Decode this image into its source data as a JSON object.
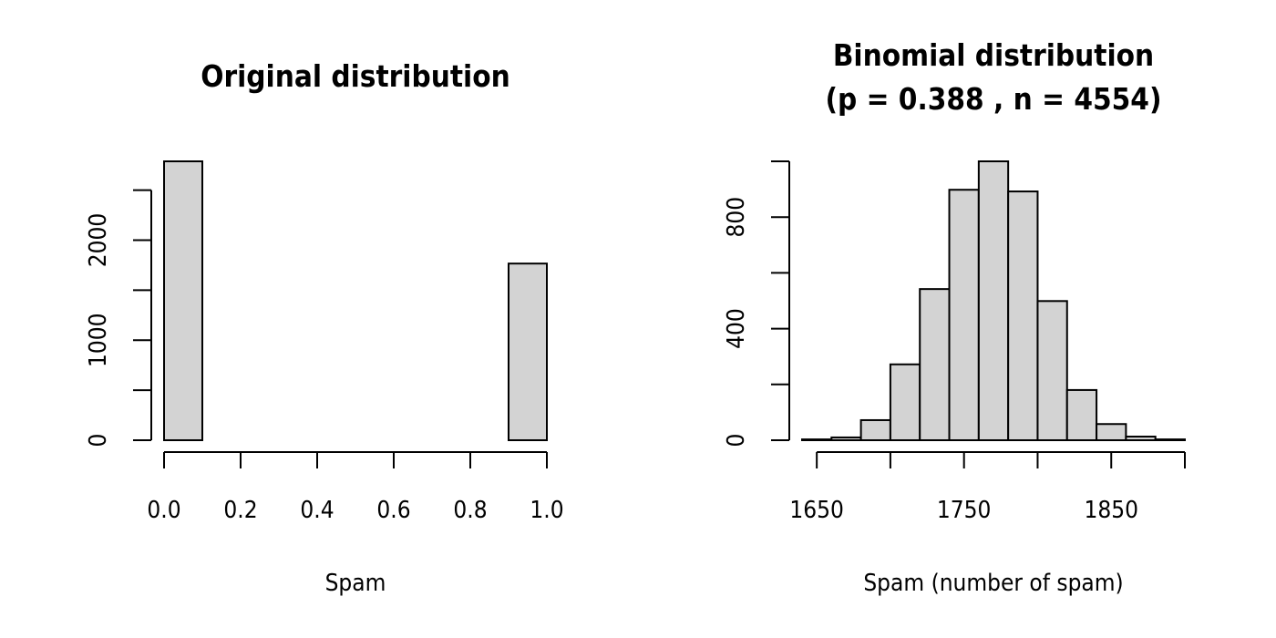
{
  "chart_data": [
    {
      "id": "left",
      "type": "bar",
      "title_lines": [
        "Original distribution"
      ],
      "xlabel": "Spam",
      "ylabel": "",
      "bin_edges": [
        0.0,
        0.1,
        0.2,
        0.3,
        0.4,
        0.5,
        0.6,
        0.7,
        0.8,
        0.9,
        1.0
      ],
      "values": [
        2788,
        0,
        0,
        0,
        0,
        0,
        0,
        0,
        0,
        1766
      ],
      "xlim": [
        0.0,
        1.0
      ],
      "ylim": [
        0,
        2788
      ],
      "x_ticks": [
        0.0,
        0.2,
        0.4,
        0.6,
        0.8,
        1.0
      ],
      "x_tick_labels": [
        "0.0",
        "0.2",
        "0.4",
        "0.6",
        "0.8",
        "1.0"
      ],
      "y_ticks": [
        0,
        500,
        1000,
        1500,
        2000,
        2500
      ],
      "y_tick_labels": [
        "0",
        "",
        "1000",
        "",
        "2000",
        ""
      ],
      "grid": false,
      "legend": "none"
    },
    {
      "id": "right",
      "type": "bar",
      "title_lines": [
        "Binomial distribution",
        "(p = 0.388 , n = 4554)"
      ],
      "xlabel": "Spam (number of spam)",
      "ylabel": "",
      "bin_edges": [
        1640,
        1660,
        1680,
        1700,
        1720,
        1740,
        1760,
        1780,
        1800,
        1820,
        1840,
        1860,
        1880,
        1900
      ],
      "values": [
        3,
        10,
        72,
        272,
        542,
        898,
        1000,
        892,
        499,
        180,
        58,
        13,
        3
      ],
      "xlim": [
        1640,
        1900
      ],
      "ylim": [
        0,
        1000
      ],
      "x_ticks": [
        1650,
        1700,
        1750,
        1800,
        1850,
        1900
      ],
      "x_tick_labels": [
        "1650",
        "",
        "1750",
        "",
        "1850",
        ""
      ],
      "y_ticks": [
        0,
        200,
        400,
        600,
        800,
        1000
      ],
      "y_tick_labels": [
        "0",
        "",
        "400",
        "",
        "800",
        ""
      ],
      "grid": false,
      "legend": "none"
    }
  ]
}
